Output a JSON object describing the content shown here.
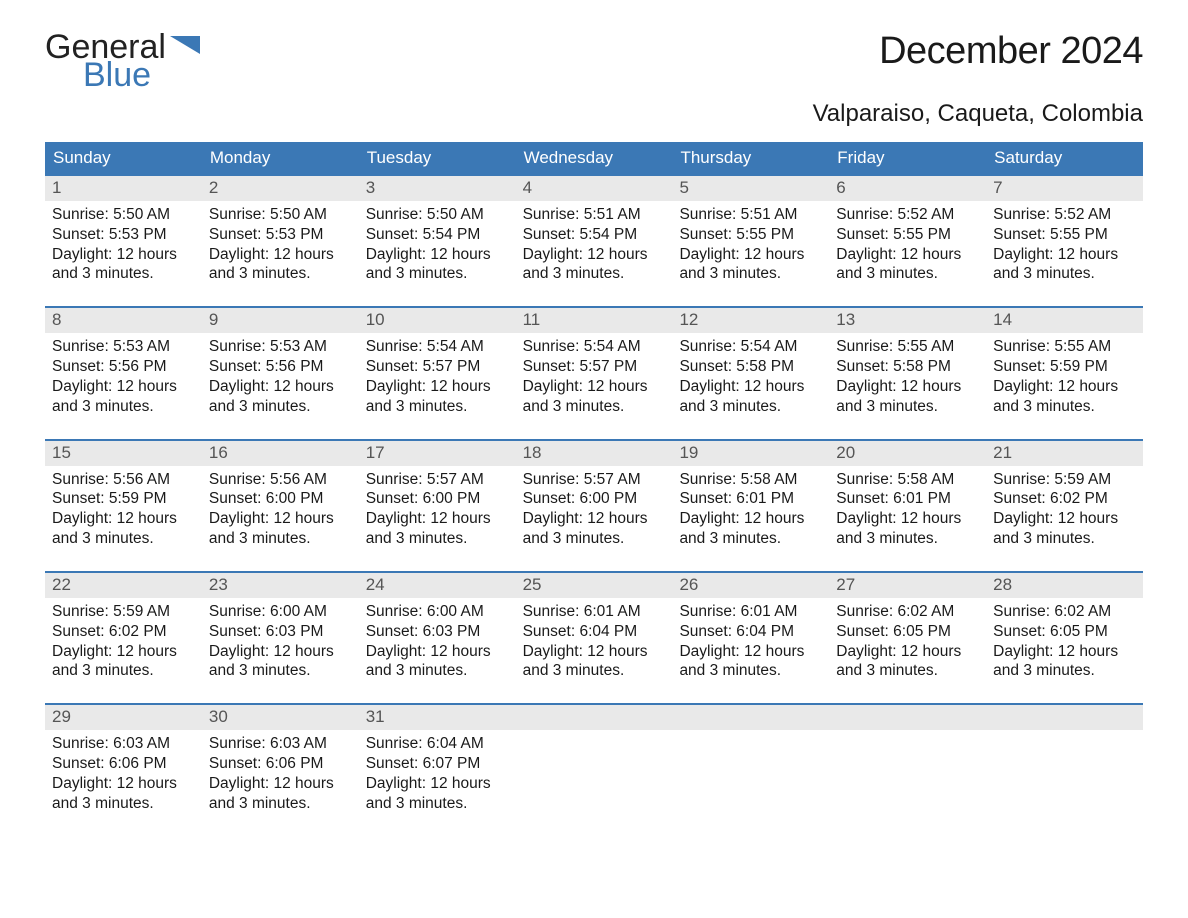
{
  "brand": {
    "part1": "General",
    "part2": "Blue",
    "logo_color": "#3b78b5",
    "text_color": "#222222"
  },
  "title": "December 2024",
  "location": "Valparaiso, Caqueta, Colombia",
  "colors": {
    "header_bg": "#3b78b5",
    "header_text": "#ffffff",
    "strip_bg": "#e9e9e9",
    "strip_border": "#3b78b5",
    "day_number": "#555555",
    "body_text": "#1a1a1a",
    "page_bg": "#ffffff"
  },
  "fonts": {
    "title_size_pt": 29,
    "location_size_pt": 18,
    "dow_size_pt": 13,
    "daynum_size_pt": 13,
    "body_size_pt": 12
  },
  "days_of_week": [
    "Sunday",
    "Monday",
    "Tuesday",
    "Wednesday",
    "Thursday",
    "Friday",
    "Saturday"
  ],
  "weeks": [
    [
      {
        "num": "1",
        "sunrise": "Sunrise: 5:50 AM",
        "sunset": "Sunset: 5:53 PM",
        "daylight1": "Daylight: 12 hours",
        "daylight2": "and 3 minutes."
      },
      {
        "num": "2",
        "sunrise": "Sunrise: 5:50 AM",
        "sunset": "Sunset: 5:53 PM",
        "daylight1": "Daylight: 12 hours",
        "daylight2": "and 3 minutes."
      },
      {
        "num": "3",
        "sunrise": "Sunrise: 5:50 AM",
        "sunset": "Sunset: 5:54 PM",
        "daylight1": "Daylight: 12 hours",
        "daylight2": "and 3 minutes."
      },
      {
        "num": "4",
        "sunrise": "Sunrise: 5:51 AM",
        "sunset": "Sunset: 5:54 PM",
        "daylight1": "Daylight: 12 hours",
        "daylight2": "and 3 minutes."
      },
      {
        "num": "5",
        "sunrise": "Sunrise: 5:51 AM",
        "sunset": "Sunset: 5:55 PM",
        "daylight1": "Daylight: 12 hours",
        "daylight2": "and 3 minutes."
      },
      {
        "num": "6",
        "sunrise": "Sunrise: 5:52 AM",
        "sunset": "Sunset: 5:55 PM",
        "daylight1": "Daylight: 12 hours",
        "daylight2": "and 3 minutes."
      },
      {
        "num": "7",
        "sunrise": "Sunrise: 5:52 AM",
        "sunset": "Sunset: 5:55 PM",
        "daylight1": "Daylight: 12 hours",
        "daylight2": "and 3 minutes."
      }
    ],
    [
      {
        "num": "8",
        "sunrise": "Sunrise: 5:53 AM",
        "sunset": "Sunset: 5:56 PM",
        "daylight1": "Daylight: 12 hours",
        "daylight2": "and 3 minutes."
      },
      {
        "num": "9",
        "sunrise": "Sunrise: 5:53 AM",
        "sunset": "Sunset: 5:56 PM",
        "daylight1": "Daylight: 12 hours",
        "daylight2": "and 3 minutes."
      },
      {
        "num": "10",
        "sunrise": "Sunrise: 5:54 AM",
        "sunset": "Sunset: 5:57 PM",
        "daylight1": "Daylight: 12 hours",
        "daylight2": "and 3 minutes."
      },
      {
        "num": "11",
        "sunrise": "Sunrise: 5:54 AM",
        "sunset": "Sunset: 5:57 PM",
        "daylight1": "Daylight: 12 hours",
        "daylight2": "and 3 minutes."
      },
      {
        "num": "12",
        "sunrise": "Sunrise: 5:54 AM",
        "sunset": "Sunset: 5:58 PM",
        "daylight1": "Daylight: 12 hours",
        "daylight2": "and 3 minutes."
      },
      {
        "num": "13",
        "sunrise": "Sunrise: 5:55 AM",
        "sunset": "Sunset: 5:58 PM",
        "daylight1": "Daylight: 12 hours",
        "daylight2": "and 3 minutes."
      },
      {
        "num": "14",
        "sunrise": "Sunrise: 5:55 AM",
        "sunset": "Sunset: 5:59 PM",
        "daylight1": "Daylight: 12 hours",
        "daylight2": "and 3 minutes."
      }
    ],
    [
      {
        "num": "15",
        "sunrise": "Sunrise: 5:56 AM",
        "sunset": "Sunset: 5:59 PM",
        "daylight1": "Daylight: 12 hours",
        "daylight2": "and 3 minutes."
      },
      {
        "num": "16",
        "sunrise": "Sunrise: 5:56 AM",
        "sunset": "Sunset: 6:00 PM",
        "daylight1": "Daylight: 12 hours",
        "daylight2": "and 3 minutes."
      },
      {
        "num": "17",
        "sunrise": "Sunrise: 5:57 AM",
        "sunset": "Sunset: 6:00 PM",
        "daylight1": "Daylight: 12 hours",
        "daylight2": "and 3 minutes."
      },
      {
        "num": "18",
        "sunrise": "Sunrise: 5:57 AM",
        "sunset": "Sunset: 6:00 PM",
        "daylight1": "Daylight: 12 hours",
        "daylight2": "and 3 minutes."
      },
      {
        "num": "19",
        "sunrise": "Sunrise: 5:58 AM",
        "sunset": "Sunset: 6:01 PM",
        "daylight1": "Daylight: 12 hours",
        "daylight2": "and 3 minutes."
      },
      {
        "num": "20",
        "sunrise": "Sunrise: 5:58 AM",
        "sunset": "Sunset: 6:01 PM",
        "daylight1": "Daylight: 12 hours",
        "daylight2": "and 3 minutes."
      },
      {
        "num": "21",
        "sunrise": "Sunrise: 5:59 AM",
        "sunset": "Sunset: 6:02 PM",
        "daylight1": "Daylight: 12 hours",
        "daylight2": "and 3 minutes."
      }
    ],
    [
      {
        "num": "22",
        "sunrise": "Sunrise: 5:59 AM",
        "sunset": "Sunset: 6:02 PM",
        "daylight1": "Daylight: 12 hours",
        "daylight2": "and 3 minutes."
      },
      {
        "num": "23",
        "sunrise": "Sunrise: 6:00 AM",
        "sunset": "Sunset: 6:03 PM",
        "daylight1": "Daylight: 12 hours",
        "daylight2": "and 3 minutes."
      },
      {
        "num": "24",
        "sunrise": "Sunrise: 6:00 AM",
        "sunset": "Sunset: 6:03 PM",
        "daylight1": "Daylight: 12 hours",
        "daylight2": "and 3 minutes."
      },
      {
        "num": "25",
        "sunrise": "Sunrise: 6:01 AM",
        "sunset": "Sunset: 6:04 PM",
        "daylight1": "Daylight: 12 hours",
        "daylight2": "and 3 minutes."
      },
      {
        "num": "26",
        "sunrise": "Sunrise: 6:01 AM",
        "sunset": "Sunset: 6:04 PM",
        "daylight1": "Daylight: 12 hours",
        "daylight2": "and 3 minutes."
      },
      {
        "num": "27",
        "sunrise": "Sunrise: 6:02 AM",
        "sunset": "Sunset: 6:05 PM",
        "daylight1": "Daylight: 12 hours",
        "daylight2": "and 3 minutes."
      },
      {
        "num": "28",
        "sunrise": "Sunrise: 6:02 AM",
        "sunset": "Sunset: 6:05 PM",
        "daylight1": "Daylight: 12 hours",
        "daylight2": "and 3 minutes."
      }
    ],
    [
      {
        "num": "29",
        "sunrise": "Sunrise: 6:03 AM",
        "sunset": "Sunset: 6:06 PM",
        "daylight1": "Daylight: 12 hours",
        "daylight2": "and 3 minutes."
      },
      {
        "num": "30",
        "sunrise": "Sunrise: 6:03 AM",
        "sunset": "Sunset: 6:06 PM",
        "daylight1": "Daylight: 12 hours",
        "daylight2": "and 3 minutes."
      },
      {
        "num": "31",
        "sunrise": "Sunrise: 6:04 AM",
        "sunset": "Sunset: 6:07 PM",
        "daylight1": "Daylight: 12 hours",
        "daylight2": "and 3 minutes."
      },
      null,
      null,
      null,
      null
    ]
  ]
}
